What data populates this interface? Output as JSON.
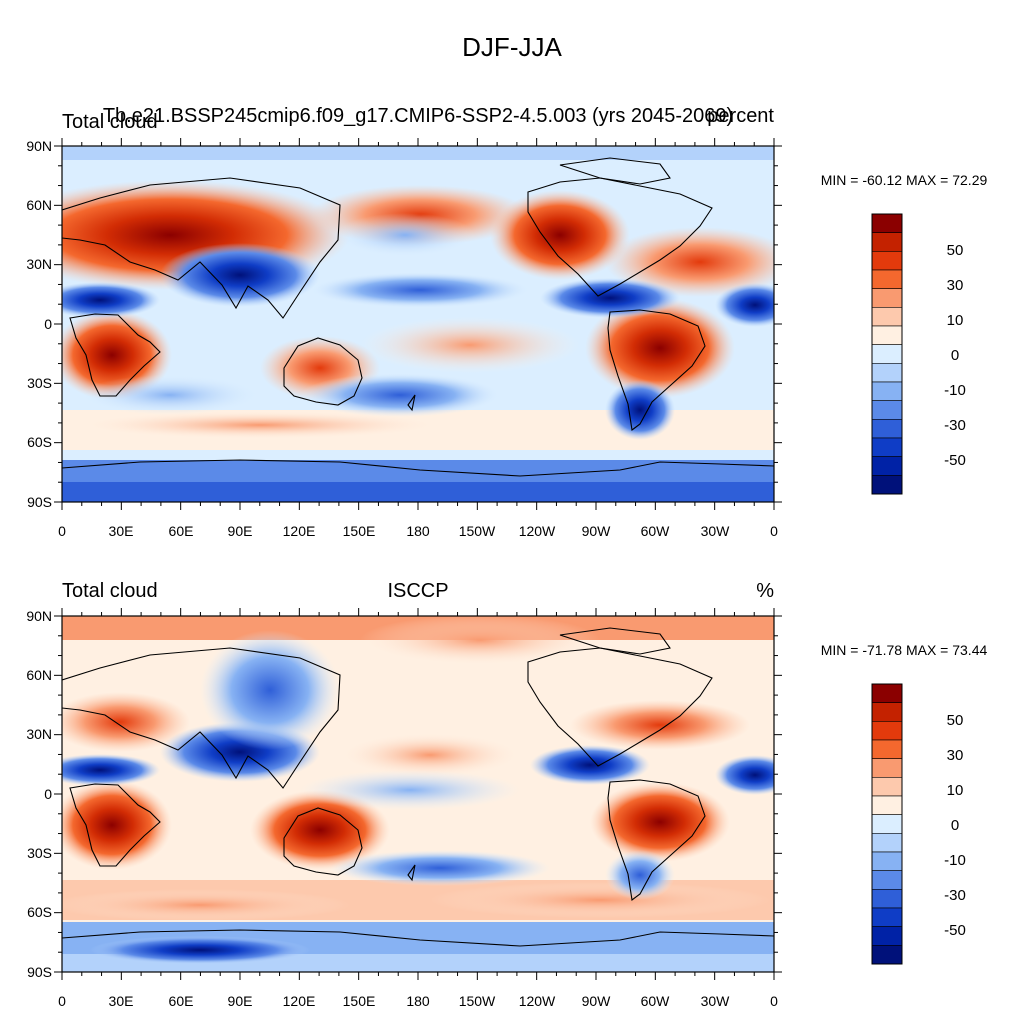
{
  "figure": {
    "title": "DJF-JJA"
  },
  "chart_data": [
    {
      "type": "heatmap",
      "panel": "top",
      "left_title": "Total cloud",
      "center_title": "Tb.e21.BSSP245cmip6.f09_g17.CMIP6-SSP2-4.5.003 (yrs 2045-2069)",
      "right_title": "percent",
      "min_max_label": "MIN = -60.12 MAX =  72.29",
      "x_tick_labels": [
        "0",
        "30E",
        "60E",
        "90E",
        "120E",
        "150E",
        "180",
        "150W",
        "120W",
        "90W",
        "60W",
        "30W",
        "0"
      ],
      "y_tick_labels": [
        "90N",
        "60N",
        "30N",
        "0",
        "30S",
        "60S",
        "90S"
      ],
      "xlim": [
        0,
        360
      ],
      "ylim": [
        -90,
        90
      ],
      "colorbar_labels": [
        "50",
        "30",
        "10",
        "0",
        "-10",
        "-30",
        "-50"
      ]
    },
    {
      "type": "heatmap",
      "panel": "bottom",
      "left_title": "Total cloud",
      "center_title": "ISCCP",
      "right_title": "%",
      "min_max_label": "MIN = -71.78 MAX =  73.44",
      "x_tick_labels": [
        "0",
        "30E",
        "60E",
        "90E",
        "120E",
        "150E",
        "180",
        "150W",
        "120W",
        "90W",
        "60W",
        "30W",
        "0"
      ],
      "y_tick_labels": [
        "90N",
        "60N",
        "30N",
        "0",
        "30S",
        "60S",
        "90S"
      ],
      "xlim": [
        0,
        360
      ],
      "ylim": [
        -90,
        90
      ],
      "colorbar_labels": [
        "50",
        "30",
        "10",
        "0",
        "-10",
        "-30",
        "-50"
      ]
    }
  ],
  "colors": {
    "scale_top_to_bottom": [
      "#8b0000",
      "#c42200",
      "#e33a0c",
      "#f4682e",
      "#f99a70",
      "#fdc9ad",
      "#fff0e2",
      "#dbeeff",
      "#b3d2fb",
      "#87b2f3",
      "#5b8ae8",
      "#2f5fd8",
      "#0f3dc6",
      "#0022a6",
      "#00117a"
    ]
  }
}
